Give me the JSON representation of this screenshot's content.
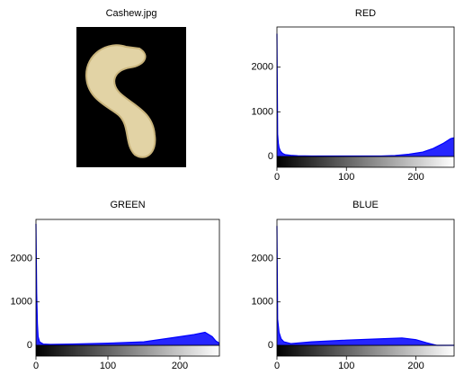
{
  "chart_data": [
    {
      "type": "image",
      "title": "Cashew.jpg"
    },
    {
      "type": "area",
      "title": "RED",
      "color": "#0000ff",
      "x": [
        0,
        1,
        2,
        3,
        5,
        8,
        12,
        20,
        30,
        50,
        100,
        150,
        170,
        190,
        210,
        225,
        240,
        250,
        255
      ],
      "values": [
        2750,
        500,
        300,
        200,
        120,
        70,
        40,
        25,
        15,
        10,
        10,
        10,
        20,
        50,
        100,
        180,
        300,
        400,
        420
      ],
      "xlim": [
        0,
        255
      ],
      "ylim": [
        0,
        2900
      ],
      "xticks": [
        0,
        100,
        200
      ],
      "yticks": [
        0,
        1000,
        2000
      ]
    },
    {
      "type": "area",
      "title": "GREEN",
      "color": "#0000ff",
      "x": [
        0,
        1,
        2,
        3,
        5,
        10,
        20,
        50,
        100,
        150,
        200,
        220,
        235,
        245,
        250,
        255
      ],
      "values": [
        2800,
        1200,
        500,
        200,
        80,
        30,
        20,
        30,
        50,
        80,
        200,
        250,
        300,
        200,
        100,
        50
      ],
      "xlim": [
        0,
        255
      ],
      "ylim": [
        0,
        2900
      ],
      "xticks": [
        0,
        100,
        200
      ],
      "yticks": [
        0,
        1000,
        2000
      ]
    },
    {
      "type": "area",
      "title": "BLUE",
      "color": "#0000ff",
      "x": [
        0,
        1,
        3,
        6,
        10,
        20,
        50,
        100,
        150,
        180,
        200,
        215,
        225,
        230,
        255
      ],
      "values": [
        2750,
        600,
        300,
        150,
        80,
        40,
        80,
        120,
        150,
        170,
        130,
        60,
        20,
        0,
        0
      ],
      "xlim": [
        0,
        255
      ],
      "ylim": [
        0,
        2900
      ],
      "xticks": [
        0,
        100,
        200
      ],
      "yticks": [
        0,
        1000,
        2000
      ]
    }
  ]
}
